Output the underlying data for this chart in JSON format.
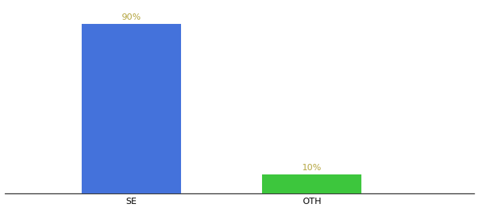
{
  "categories": [
    "SE",
    "OTH"
  ],
  "values": [
    90,
    10
  ],
  "bar_colors": [
    "#4472db",
    "#3dc63d"
  ],
  "label_texts": [
    "90%",
    "10%"
  ],
  "label_color": "#b5a642",
  "ylim": [
    0,
    100
  ],
  "background_color": "#ffffff",
  "tick_label_fontsize": 9,
  "bar_label_fontsize": 9,
  "bar_width": 0.55,
  "x_positions": [
    1,
    2
  ],
  "xlim": [
    0.3,
    2.9
  ]
}
